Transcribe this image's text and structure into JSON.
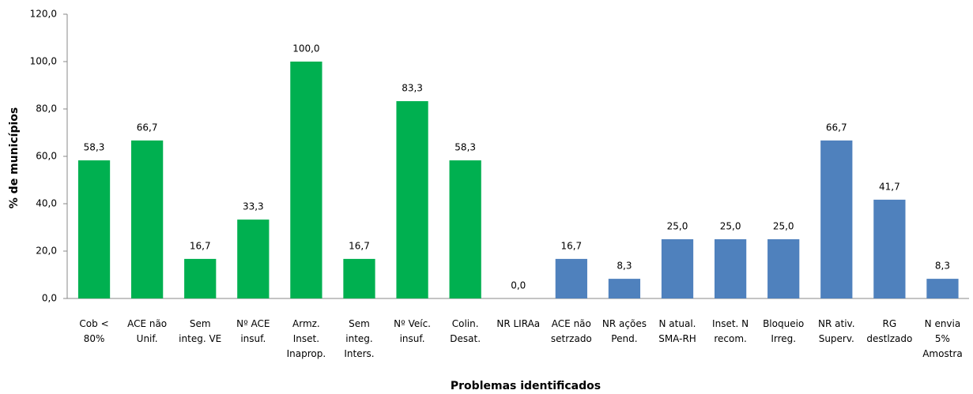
{
  "chart_data": {
    "type": "bar",
    "x_label": "Problemas identificados",
    "y_label": "% de municípios",
    "categories": [
      "Cob <\n80%",
      "ACE não\nUnif.",
      "Sem\ninteg. VE",
      "Nº ACE\ninsuf.",
      "Armz.\nInset.\nInaprop.",
      "Sem\ninteg.\nInters.",
      "Nº Veíc.\ninsuf.",
      "Colin.\nDesat.",
      "NR LIRAa",
      "ACE não\nsetrzado",
      "NR ações\nPend.",
      "N atual.\nSMA-RH",
      "Inset. N\nrecom.",
      "Bloqueio\nIrreg.",
      "NR ativ.\nSuperv.",
      "RG\ndestlzado",
      "N envia\n5%\nAmostra"
    ],
    "values": [
      58.3,
      66.7,
      16.7,
      33.3,
      100,
      16.7,
      83.3,
      58.3,
      0,
      16.7,
      8.3,
      25,
      25,
      25,
      66.7,
      41.7,
      8.3
    ],
    "value_labels": [
      "58,3",
      "66,7",
      "16,7",
      "33,3",
      "100,0",
      "16,7",
      "83,3",
      "58,3",
      "0,0",
      "16,7",
      "8,3",
      "25,0",
      "25,0",
      "25,0",
      "66,7",
      "41,7",
      "8,3"
    ],
    "colors": [
      "#00b050",
      "#00b050",
      "#00b050",
      "#00b050",
      "#00b050",
      "#00b050",
      "#00b050",
      "#00b050",
      "#4f81bd",
      "#4f81bd",
      "#4f81bd",
      "#4f81bd",
      "#4f81bd",
      "#4f81bd",
      "#4f81bd",
      "#4f81bd",
      "#4f81bd"
    ],
    "ylim": [
      0,
      120
    ],
    "yticks": [
      {
        "value": 0,
        "label": "0,0"
      },
      {
        "value": 20,
        "label": "20,0"
      },
      {
        "value": 40,
        "label": "40,0"
      },
      {
        "value": 60,
        "label": "60,0"
      },
      {
        "value": 80,
        "label": "80,0"
      },
      {
        "value": 100,
        "label": "100,0"
      },
      {
        "value": 120,
        "label": "120,0"
      }
    ]
  }
}
